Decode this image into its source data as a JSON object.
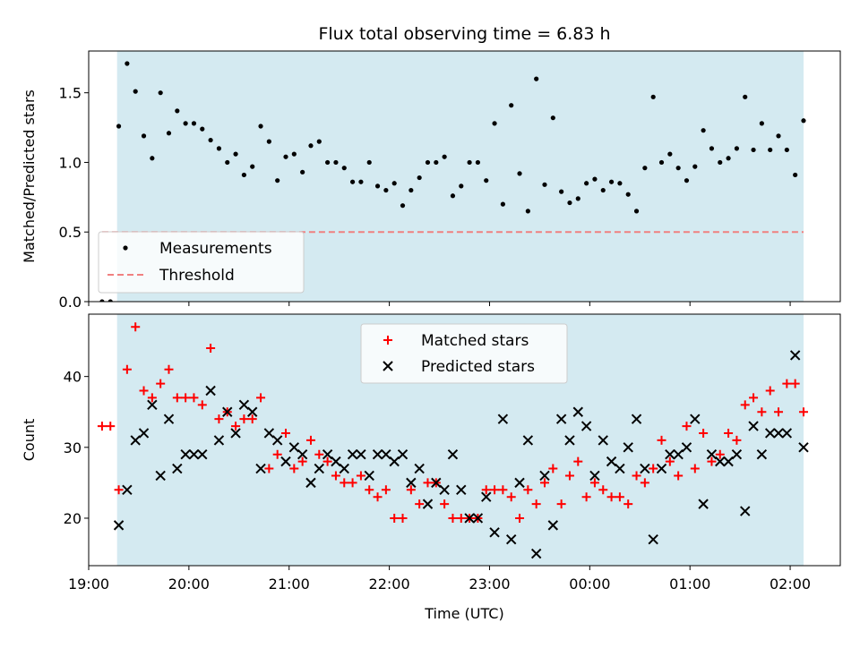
{
  "chart_data": [
    {
      "type": "scatter",
      "title": "Flux total observing time = 6.83 h",
      "ylabel": "Matched/Predicted stars",
      "xlabel": "",
      "xlim": [
        "19:00",
        "02:30"
      ],
      "ylim": [
        0,
        1.8
      ],
      "yticks": [
        0.0,
        0.5,
        1.0,
        1.5
      ],
      "ytick_labels": [
        "0.0",
        "0.5",
        "1.0",
        "1.5"
      ],
      "grid": false,
      "legend_placement": "lower-left",
      "shaded_span": {
        "from": "19:17",
        "to": "02:08",
        "color": "#d4eaf1"
      },
      "threshold": {
        "name": "Threshold",
        "value": 0.5,
        "color": "#f08080",
        "style": "dashed"
      },
      "series": [
        {
          "name": "Measurements",
          "marker": "dot",
          "color": "#000000",
          "x": [
            "19:08",
            "19:13",
            "19:18",
            "19:23",
            "19:28",
            "19:33",
            "19:38",
            "19:43",
            "19:48",
            "19:53",
            "19:58",
            "20:03",
            "20:08",
            "20:13",
            "20:18",
            "20:23",
            "20:28",
            "20:33",
            "20:38",
            "20:43",
            "20:48",
            "20:53",
            "20:58",
            "21:03",
            "21:08",
            "21:13",
            "21:18",
            "21:23",
            "21:28",
            "21:33",
            "21:38",
            "21:43",
            "21:48",
            "21:53",
            "21:58",
            "22:03",
            "22:08",
            "22:13",
            "22:18",
            "22:23",
            "22:28",
            "22:33",
            "22:38",
            "22:43",
            "22:48",
            "22:53",
            "22:58",
            "23:03",
            "23:08",
            "23:13",
            "23:18",
            "23:23",
            "23:28",
            "23:33",
            "23:38",
            "23:43",
            "23:48",
            "23:53",
            "23:58",
            "00:03",
            "00:08",
            "00:13",
            "00:18",
            "00:23",
            "00:28",
            "00:33",
            "00:38",
            "00:43",
            "00:48",
            "00:53",
            "00:58",
            "01:03",
            "01:08",
            "01:13",
            "01:18",
            "01:23",
            "01:28",
            "01:33",
            "01:38",
            "01:43",
            "01:48",
            "01:53",
            "01:58",
            "02:03",
            "02:08"
          ],
          "y": [
            0.0,
            0.0,
            1.26,
            1.71,
            1.51,
            1.19,
            1.03,
            1.5,
            1.21,
            1.37,
            1.28,
            1.28,
            1.24,
            1.16,
            1.1,
            1.0,
            1.06,
            0.91,
            0.97,
            1.26,
            1.15,
            0.87,
            1.04,
            1.06,
            0.93,
            1.12,
            1.15,
            1.0,
            1.0,
            0.96,
            0.86,
            0.86,
            1.0,
            0.83,
            0.8,
            0.85,
            0.69,
            0.8,
            0.89,
            1.0,
            1.0,
            1.04,
            0.76,
            0.83,
            1.0,
            1.0,
            0.87,
            1.28,
            0.7,
            1.41,
            0.92,
            0.65,
            1.6,
            0.84,
            1.32,
            0.79,
            0.71,
            0.74,
            0.85,
            0.88,
            0.8,
            0.86,
            0.85,
            0.77,
            0.65,
            0.96,
            1.47,
            1.0,
            1.06,
            0.96,
            0.87,
            0.97,
            1.23,
            1.1,
            1.0,
            1.03,
            1.1,
            1.47,
            1.09,
            1.28,
            1.09,
            1.19,
            1.09,
            0.91,
            1.3
          ]
        }
      ]
    },
    {
      "type": "scatter",
      "title": "",
      "xlabel": "Time (UTC)",
      "ylabel": "Count",
      "xlim": [
        "19:00",
        "02:30"
      ],
      "ylim": [
        13.3,
        48.8
      ],
      "xticks": [
        "19:00",
        "20:00",
        "21:00",
        "22:00",
        "23:00",
        "00:00",
        "01:00",
        "02:00"
      ],
      "yticks": [
        20,
        30,
        40
      ],
      "ytick_labels": [
        "20",
        "30",
        "40"
      ],
      "grid": false,
      "legend_placement": "top-center",
      "shaded_span": {
        "from": "19:17",
        "to": "02:08",
        "color": "#d4eaf1"
      },
      "series": [
        {
          "name": "Matched stars",
          "marker": "plus",
          "color": "#ff0000",
          "x": [
            "19:08",
            "19:13",
            "19:18",
            "19:23",
            "19:28",
            "19:33",
            "19:38",
            "19:43",
            "19:48",
            "19:53",
            "19:58",
            "20:03",
            "20:08",
            "20:13",
            "20:18",
            "20:23",
            "20:28",
            "20:33",
            "20:38",
            "20:43",
            "20:48",
            "20:53",
            "20:58",
            "21:03",
            "21:08",
            "21:13",
            "21:18",
            "21:23",
            "21:28",
            "21:33",
            "21:38",
            "21:43",
            "21:48",
            "21:53",
            "21:58",
            "22:03",
            "22:08",
            "22:13",
            "22:18",
            "22:23",
            "22:28",
            "22:33",
            "22:38",
            "22:43",
            "22:48",
            "22:53",
            "22:58",
            "23:03",
            "23:08",
            "23:13",
            "23:18",
            "23:23",
            "23:28",
            "23:33",
            "23:38",
            "23:43",
            "23:48",
            "23:53",
            "23:58",
            "00:03",
            "00:08",
            "00:13",
            "00:18",
            "00:23",
            "00:28",
            "00:33",
            "00:38",
            "00:43",
            "00:48",
            "00:53",
            "00:58",
            "01:03",
            "01:08",
            "01:13",
            "01:18",
            "01:23",
            "01:28",
            "01:33",
            "01:38",
            "01:43",
            "01:48",
            "01:53",
            "01:58",
            "02:03",
            "02:08"
          ],
          "y": [
            33,
            33,
            24,
            41,
            47,
            38,
            37,
            39,
            41,
            37,
            37,
            37,
            36,
            44,
            34,
            35,
            33,
            34,
            34,
            37,
            27,
            29,
            32,
            27,
            28,
            31,
            29,
            28,
            26,
            25,
            25,
            26,
            24,
            23,
            24,
            20,
            20,
            24,
            22,
            25,
            25,
            22,
            20,
            20,
            20,
            20,
            24,
            24,
            24,
            23,
            20,
            24,
            22,
            25,
            27,
            22,
            26,
            28,
            23,
            25,
            24,
            23,
            23,
            22,
            26,
            25,
            27,
            31,
            28,
            26,
            33,
            27,
            32,
            28,
            29,
            32,
            31,
            36,
            37,
            35,
            38,
            35,
            39,
            39,
            35
          ]
        },
        {
          "name": "Predicted stars",
          "marker": "x",
          "color": "#000000",
          "x": [
            "19:18",
            "19:23",
            "19:28",
            "19:33",
            "19:38",
            "19:43",
            "19:48",
            "19:53",
            "19:58",
            "20:03",
            "20:08",
            "20:13",
            "20:18",
            "20:23",
            "20:28",
            "20:33",
            "20:38",
            "20:43",
            "20:48",
            "20:53",
            "20:58",
            "21:03",
            "21:08",
            "21:13",
            "21:18",
            "21:23",
            "21:28",
            "21:33",
            "21:38",
            "21:43",
            "21:48",
            "21:53",
            "21:58",
            "22:03",
            "22:08",
            "22:13",
            "22:18",
            "22:23",
            "22:28",
            "22:33",
            "22:38",
            "22:43",
            "22:48",
            "22:53",
            "22:58",
            "23:03",
            "23:08",
            "23:13",
            "23:18",
            "23:23",
            "23:28",
            "23:33",
            "23:38",
            "23:43",
            "23:48",
            "23:53",
            "23:58",
            "00:03",
            "00:08",
            "00:13",
            "00:18",
            "00:23",
            "00:28",
            "00:33",
            "00:38",
            "00:43",
            "00:48",
            "00:53",
            "00:58",
            "01:03",
            "01:08",
            "01:13",
            "01:18",
            "01:23",
            "01:28",
            "01:33",
            "01:38",
            "01:43",
            "01:48",
            "01:53",
            "01:58",
            "02:03",
            "02:08"
          ],
          "y": [
            19,
            24,
            31,
            32,
            36,
            26,
            34,
            27,
            29,
            29,
            29,
            38,
            31,
            35,
            32,
            36,
            35,
            27,
            32,
            31,
            28,
            30,
            29,
            25,
            27,
            29,
            28,
            27,
            29,
            29,
            26,
            29,
            29,
            28,
            29,
            25,
            27,
            22,
            25,
            24,
            29,
            24,
            20,
            20,
            23,
            18,
            34,
            17,
            25,
            31,
            15,
            26,
            19,
            34,
            31,
            35,
            33,
            26,
            31,
            28,
            27,
            30,
            34,
            27,
            17,
            27,
            29,
            29,
            30,
            34,
            22,
            29,
            28,
            28,
            29,
            21,
            33,
            29,
            32,
            32,
            32,
            43,
            30
          ]
        }
      ]
    }
  ]
}
